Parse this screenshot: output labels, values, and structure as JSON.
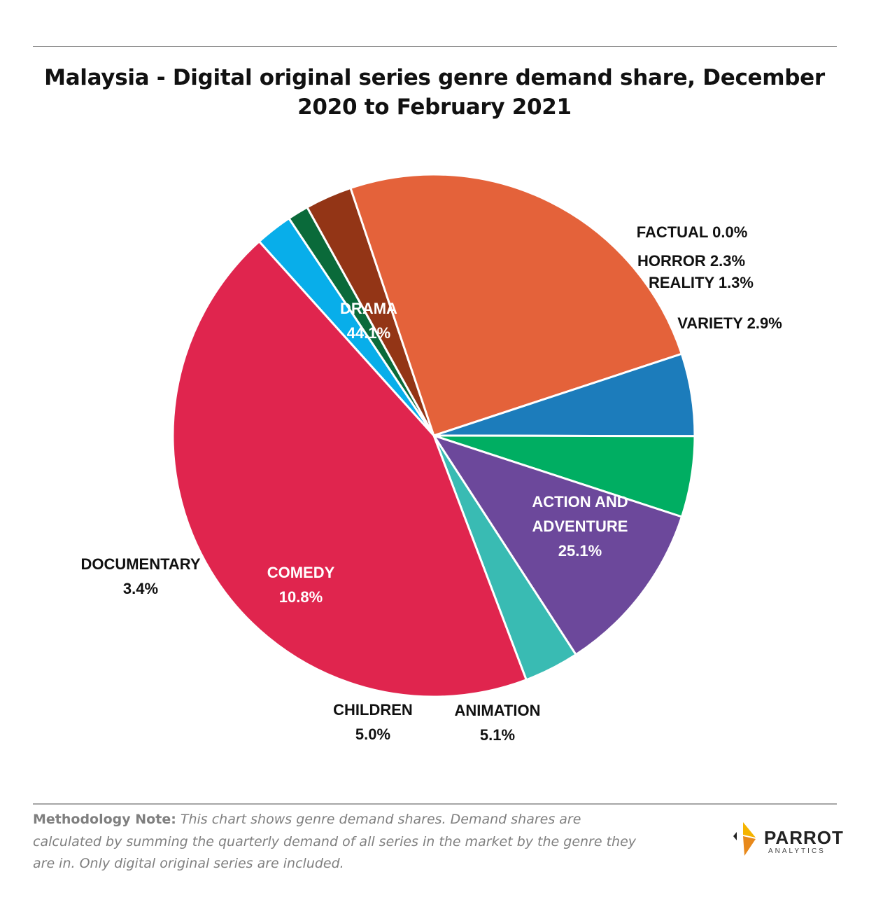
{
  "chart_data": {
    "type": "pie",
    "title": "Malaysia - Digital original series genre demand share, December 2020 to February 2021",
    "slices": [
      {
        "label": "FACTUAL",
        "value": 0.0,
        "display": "0.0%",
        "color": "#8b8b8b"
      },
      {
        "label": "HORROR",
        "value": 2.3,
        "display": "2.3%",
        "color": "#08aeea"
      },
      {
        "label": "REALITY",
        "value": 1.3,
        "display": "1.3%",
        "color": "#0a6a3a"
      },
      {
        "label": "VARIETY",
        "value": 2.9,
        "display": "2.9%",
        "color": "#933516"
      },
      {
        "label": "ACTION AND ADVENTURE",
        "label_lines": [
          "ACTION AND",
          "ADVENTURE"
        ],
        "value": 25.1,
        "display": "25.1%",
        "color": "#e4623a"
      },
      {
        "label": "ANIMATION",
        "value": 5.1,
        "display": "5.1%",
        "color": "#1c7cbb"
      },
      {
        "label": "CHILDREN",
        "value": 5.0,
        "display": "5.0%",
        "color": "#00ae62"
      },
      {
        "label": "COMEDY",
        "value": 10.8,
        "display": "10.8%",
        "color": "#6c489b"
      },
      {
        "label": "DOCUMENTARY",
        "value": 3.4,
        "display": "3.4%",
        "color": "#39bbb3"
      },
      {
        "label": "DRAMA",
        "value": 44.1,
        "display": "44.1%",
        "color": "#e0254e"
      }
    ],
    "legend": "none"
  },
  "footer": {
    "note_lead": "Methodology Note:",
    "note_text": "This chart shows genre demand shares. Demand shares are calculated by summing the quarterly demand of all series in the market by the genre they are in. Only digital original series are included."
  },
  "logo": {
    "name": "PARROT",
    "sub": "ANALYTICS",
    "colors": [
      "#f5b400",
      "#e8891b"
    ]
  }
}
